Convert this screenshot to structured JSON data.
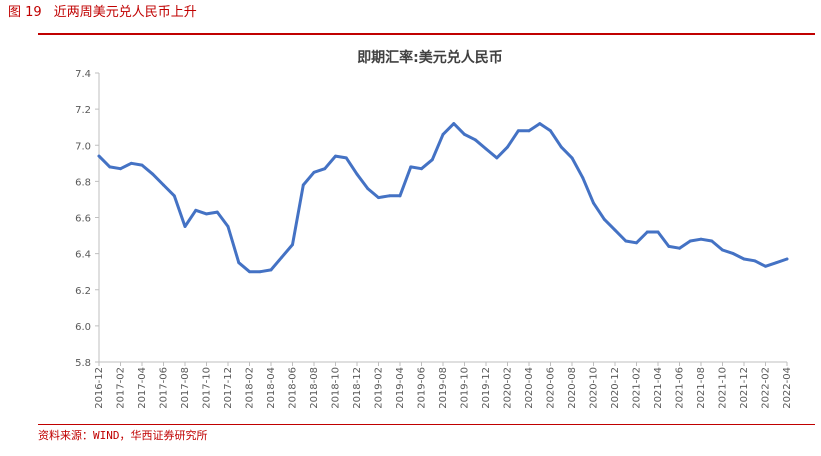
{
  "caption": {
    "number": "图 19",
    "text": "近两周美元兑人民币上升"
  },
  "source": "资料来源：WIND，华西证券研究所",
  "colors": {
    "accent": "#c00000",
    "series": "#4472c4",
    "axis": "#bfbfbf",
    "text": "#595959"
  },
  "chart_data": {
    "type": "line",
    "title": "即期汇率:美元兑人民币",
    "xlabel": "",
    "ylabel": "",
    "ylim": [
      5.8,
      7.4
    ],
    "yticks": [
      "5.8",
      "6.0",
      "6.2",
      "6.4",
      "6.6",
      "6.8",
      "7.0",
      "7.2",
      "7.4"
    ],
    "grid": false,
    "legend": "none",
    "xticks": [
      "2016-12",
      "2017-02",
      "2017-04",
      "2017-06",
      "2017-08",
      "2017-10",
      "2017-12",
      "2018-02",
      "2018-04",
      "2018-06",
      "2018-08",
      "2018-10",
      "2018-12",
      "2019-02",
      "2019-04",
      "2019-06",
      "2019-08",
      "2019-10",
      "2019-12",
      "2020-02",
      "2020-04",
      "2020-06",
      "2020-08",
      "2020-10",
      "2020-12",
      "2021-02",
      "2021-04",
      "2021-06",
      "2021-08",
      "2021-10",
      "2021-12",
      "2022-02",
      "2022-04"
    ],
    "series": [
      {
        "x": [
          "2016-12",
          "2017-01",
          "2017-02",
          "2017-03",
          "2017-04",
          "2017-05",
          "2017-06",
          "2017-07",
          "2017-08",
          "2017-09",
          "2017-10",
          "2017-11",
          "2017-12",
          "2018-01",
          "2018-02",
          "2018-03",
          "2018-04",
          "2018-05",
          "2018-06",
          "2018-07",
          "2018-08",
          "2018-09",
          "2018-10",
          "2018-11",
          "2018-12",
          "2019-01",
          "2019-02",
          "2019-03",
          "2019-04",
          "2019-05",
          "2019-06",
          "2019-07",
          "2019-08",
          "2019-09",
          "2019-10",
          "2019-11",
          "2019-12",
          "2020-01",
          "2020-02",
          "2020-03",
          "2020-04",
          "2020-05",
          "2020-06",
          "2020-07",
          "2020-08",
          "2020-09",
          "2020-10",
          "2020-11",
          "2020-12",
          "2021-01",
          "2021-02",
          "2021-03",
          "2021-04",
          "2021-05",
          "2021-06",
          "2021-07",
          "2021-08",
          "2021-09",
          "2021-10",
          "2021-11",
          "2021-12",
          "2022-01",
          "2022-02",
          "2022-03",
          "2022-04"
        ],
        "values": [
          6.94,
          6.88,
          6.87,
          6.9,
          6.89,
          6.84,
          6.78,
          6.72,
          6.55,
          6.64,
          6.62,
          6.63,
          6.55,
          6.35,
          6.3,
          6.3,
          6.31,
          6.38,
          6.45,
          6.78,
          6.85,
          6.87,
          6.94,
          6.93,
          6.84,
          6.76,
          6.71,
          6.72,
          6.72,
          6.88,
          6.87,
          6.92,
          7.06,
          7.12,
          7.06,
          7.03,
          6.98,
          6.93,
          6.99,
          7.08,
          7.08,
          7.12,
          7.08,
          6.99,
          6.93,
          6.82,
          6.68,
          6.59,
          6.53,
          6.47,
          6.46,
          6.52,
          6.52,
          6.44,
          6.43,
          6.47,
          6.48,
          6.47,
          6.42,
          6.4,
          6.37,
          6.36,
          6.33,
          6.35,
          6.37
        ]
      }
    ]
  }
}
